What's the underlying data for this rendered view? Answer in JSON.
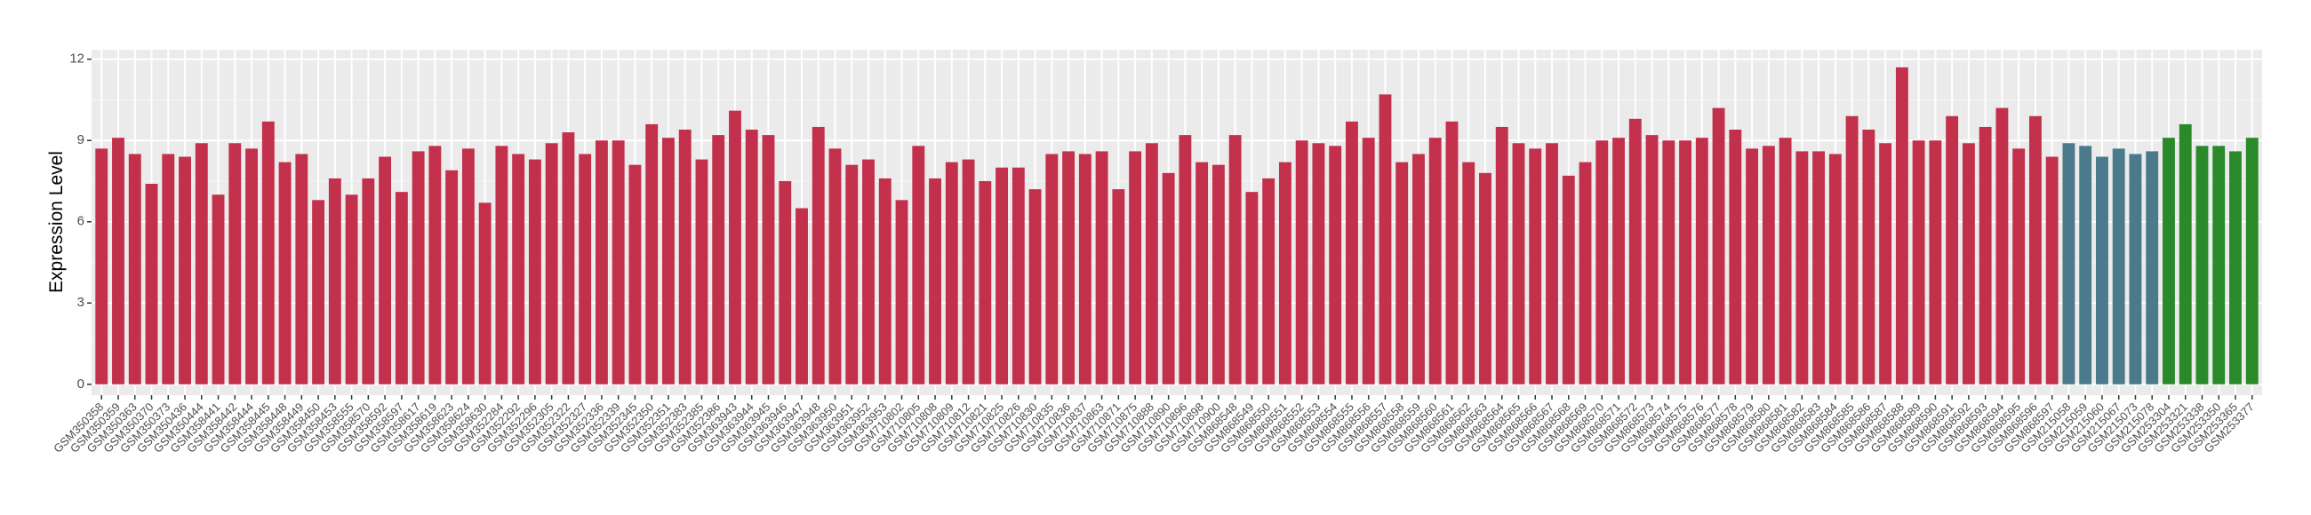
{
  "chart_data": {
    "type": "bar",
    "y_label": "Expression Level",
    "categories": [
      "GSM350358",
      "GSM350359",
      "GSM350363",
      "GSM350370",
      "GSM350373",
      "GSM350436",
      "GSM350444",
      "GSM358441",
      "GSM358442",
      "GSM358444",
      "GSM358445",
      "GSM358448",
      "GSM358449",
      "GSM358450",
      "GSM358453",
      "GSM358555",
      "GSM358570",
      "GSM358592",
      "GSM358597",
      "GSM358617",
      "GSM358619",
      "GSM358623",
      "GSM358624",
      "GSM358630",
      "GSM352284",
      "GSM352292",
      "GSM352296",
      "GSM352305",
      "GSM352322",
      "GSM352327",
      "GSM352336",
      "GSM352339",
      "GSM352345",
      "GSM352350",
      "GSM352351",
      "GSM352383",
      "GSM352385",
      "GSM352386",
      "GSM363943",
      "GSM363944",
      "GSM363945",
      "GSM363946",
      "GSM363947",
      "GSM363948",
      "GSM363950",
      "GSM363951",
      "GSM363952",
      "GSM363953",
      "GSM710802",
      "GSM710805",
      "GSM710808",
      "GSM710809",
      "GSM710812",
      "GSM710821",
      "GSM710825",
      "GSM710826",
      "GSM710830",
      "GSM710835",
      "GSM710836",
      "GSM710837",
      "GSM710863",
      "GSM710871",
      "GSM710875",
      "GSM710888",
      "GSM710890",
      "GSM710896",
      "GSM710898",
      "GSM710900",
      "GSM868548",
      "GSM868549",
      "GSM868550",
      "GSM868551",
      "GSM868552",
      "GSM868553",
      "GSM868554",
      "GSM868555",
      "GSM868556",
      "GSM868557",
      "GSM868558",
      "GSM868559",
      "GSM868560",
      "GSM868561",
      "GSM868562",
      "GSM868563",
      "GSM868564",
      "GSM868565",
      "GSM868566",
      "GSM868567",
      "GSM868568",
      "GSM868569",
      "GSM868570",
      "GSM868571",
      "GSM868572",
      "GSM868573",
      "GSM868574",
      "GSM868575",
      "GSM868576",
      "GSM868577",
      "GSM868578",
      "GSM868579",
      "GSM868580",
      "GSM868581",
      "GSM868582",
      "GSM868583",
      "GSM868584",
      "GSM868585",
      "GSM868586",
      "GSM868587",
      "GSM868588",
      "GSM868589",
      "GSM868590",
      "GSM868591",
      "GSM868592",
      "GSM868593",
      "GSM868594",
      "GSM868595",
      "GSM868596",
      "GSM868597",
      "GSM215058",
      "GSM215059",
      "GSM215060",
      "GSM215067",
      "GSM215073",
      "GSM215078",
      "GSM253304",
      "GSM253321",
      "GSM253338",
      "GSM253350",
      "GSM253365",
      "GSM253377"
    ],
    "values": [
      8.7,
      9.1,
      8.5,
      7.4,
      8.5,
      8.4,
      8.9,
      7.0,
      8.9,
      8.7,
      9.7,
      8.2,
      8.5,
      6.8,
      7.6,
      7.0,
      7.6,
      8.4,
      7.1,
      8.6,
      8.8,
      7.9,
      8.7,
      6.7,
      8.8,
      8.5,
      8.3,
      8.9,
      9.3,
      8.5,
      9.0,
      9.0,
      8.1,
      9.6,
      9.1,
      9.4,
      8.3,
      9.2,
      10.1,
      9.4,
      9.2,
      7.5,
      6.5,
      9.5,
      8.7,
      8.1,
      8.3,
      7.6,
      6.8,
      8.8,
      7.6,
      8.2,
      8.3,
      7.5,
      8.0,
      8.0,
      7.2,
      8.5,
      8.6,
      8.5,
      8.6,
      7.2,
      8.6,
      8.9,
      7.8,
      9.2,
      8.2,
      8.1,
      9.2,
      7.1,
      7.6,
      8.2,
      9.0,
      8.9,
      8.8,
      9.7,
      9.1,
      10.7,
      8.2,
      8.5,
      9.1,
      9.7,
      8.2,
      7.8,
      9.5,
      8.9,
      8.7,
      8.9,
      7.7,
      8.2,
      9.0,
      9.1,
      9.8,
      9.2,
      9.0,
      9.0,
      9.1,
      10.2,
      9.4,
      8.7,
      8.8,
      9.1,
      8.6,
      8.6,
      8.5,
      9.9,
      9.4,
      8.9,
      11.7,
      9.0,
      9.0,
      9.9,
      8.9,
      9.5,
      10.2,
      8.7,
      9.9,
      8.4,
      8.9,
      8.8,
      8.4,
      8.7,
      8.5,
      8.6,
      9.1,
      9.6,
      8.8,
      8.8,
      8.6,
      9.1
    ],
    "bar_colors": [
      "#c3304b",
      "#c3304b",
      "#c3304b",
      "#c3304b",
      "#c3304b",
      "#c3304b",
      "#c3304b",
      "#c3304b",
      "#c3304b",
      "#c3304b",
      "#c3304b",
      "#c3304b",
      "#c3304b",
      "#c3304b",
      "#c3304b",
      "#c3304b",
      "#c3304b",
      "#c3304b",
      "#c3304b",
      "#c3304b",
      "#c3304b",
      "#c3304b",
      "#c3304b",
      "#c3304b",
      "#c3304b",
      "#c3304b",
      "#c3304b",
      "#c3304b",
      "#c3304b",
      "#c3304b",
      "#c3304b",
      "#c3304b",
      "#c3304b",
      "#c3304b",
      "#c3304b",
      "#c3304b",
      "#c3304b",
      "#c3304b",
      "#c3304b",
      "#c3304b",
      "#c3304b",
      "#c3304b",
      "#c3304b",
      "#c3304b",
      "#c3304b",
      "#c3304b",
      "#c3304b",
      "#c3304b",
      "#c3304b",
      "#c3304b",
      "#c3304b",
      "#c3304b",
      "#c3304b",
      "#c3304b",
      "#c3304b",
      "#c3304b",
      "#c3304b",
      "#c3304b",
      "#c3304b",
      "#c3304b",
      "#c3304b",
      "#c3304b",
      "#c3304b",
      "#c3304b",
      "#c3304b",
      "#c3304b",
      "#c3304b",
      "#c3304b",
      "#c3304b",
      "#c3304b",
      "#c3304b",
      "#c3304b",
      "#c3304b",
      "#c3304b",
      "#c3304b",
      "#c3304b",
      "#c3304b",
      "#c3304b",
      "#c3304b",
      "#c3304b",
      "#c3304b",
      "#c3304b",
      "#c3304b",
      "#c3304b",
      "#c3304b",
      "#c3304b",
      "#c3304b",
      "#c3304b",
      "#c3304b",
      "#c3304b",
      "#c3304b",
      "#c3304b",
      "#c3304b",
      "#c3304b",
      "#c3304b",
      "#c3304b",
      "#c3304b",
      "#c3304b",
      "#c3304b",
      "#c3304b",
      "#c3304b",
      "#c3304b",
      "#c3304b",
      "#c3304b",
      "#c3304b",
      "#c3304b",
      "#c3304b",
      "#c3304b",
      "#c3304b",
      "#c3304b",
      "#c3304b",
      "#c3304b",
      "#c3304b",
      "#c3304b",
      "#c3304b",
      "#c3304b",
      "#c3304b",
      "#c3304b",
      "#4a7a8c",
      "#4a7a8c",
      "#4a7a8c",
      "#4a7a8c",
      "#4a7a8c",
      "#4a7a8c",
      "#2a8a2a",
      "#2a8a2a",
      "#2a8a2a",
      "#2a8a2a",
      "#2a8a2a",
      "#2a8a2a"
    ],
    "ylim": [
      -0.4,
      12.35
    ],
    "yticks": [
      0,
      3,
      6,
      9,
      12
    ],
    "grid": true
  }
}
